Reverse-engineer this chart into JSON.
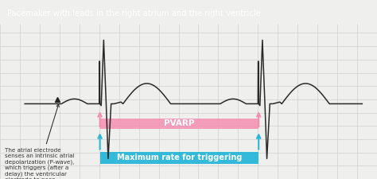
{
  "title": "Pacemaker with leads in the right atrium and the right ventricle",
  "title_bg": "#1a1a1a",
  "title_color": "#ffffff",
  "bg_color": "#efefed",
  "grid_color": "#d0d0d0",
  "ecg_color": "#2a2a2a",
  "pvarp_color": "#f48fb1",
  "pvarp_label": "PVARP",
  "max_rate_color": "#29b6d8",
  "max_rate_label": "Maximum rate for triggering",
  "annotation_text": "The atrial electrode\nsenses an intrinsic atrial\ndepolarization (P-wave),\nwhich triggers (after a\ndelay) the ventricular\nelectrode to pace.",
  "annotation_fontsize": 5.2,
  "ecg_linewidth": 1.1,
  "title_fontsize": 7.2
}
